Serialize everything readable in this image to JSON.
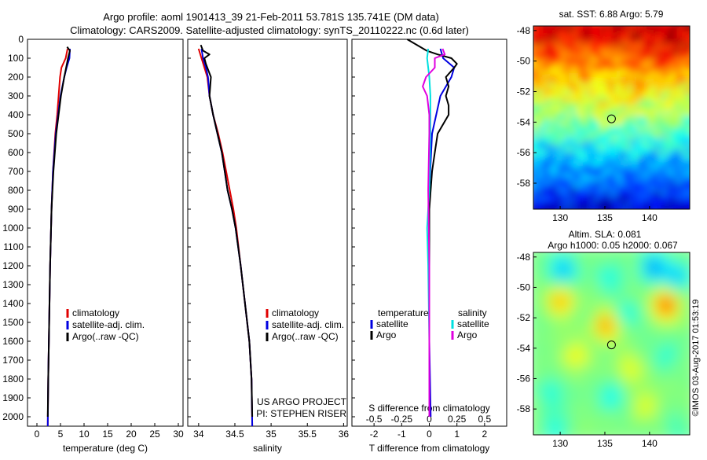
{
  "title_line1": "Argo profile: aoml 1901413_39 21-Feb-2011 53.781S 135.741E (DM data)",
  "title_line2": "Climatology: CARS2009. Satellite-adjusted climatology: synTS_20110222.nc (0.6d later)",
  "side_stamp": "©IMOS 03-Aug-2017 01:53:19",
  "colors": {
    "climatology": "#e00000",
    "satellite": "#0000e0",
    "argo": "#000000",
    "sal_satellite": "#00e0e0",
    "sal_argo": "#e000e0"
  },
  "chart_data": [
    {
      "type": "line",
      "xlabel": "temperature (deg C)",
      "ylabel": "",
      "xlim": [
        -2,
        31
      ],
      "ylim": [
        2050,
        0
      ],
      "xticks": [
        0,
        5,
        10,
        15,
        20,
        25,
        30
      ],
      "xtick_labels": [
        "0",
        "5",
        "10",
        "15",
        "20",
        "25",
        "30"
      ],
      "yticks": [
        0,
        100,
        200,
        300,
        400,
        500,
        600,
        700,
        800,
        900,
        1000,
        1100,
        1200,
        1300,
        1400,
        1500,
        1600,
        1700,
        1800,
        1900,
        2000
      ],
      "ytick_labels": [
        "0",
        "100",
        "200",
        "300",
        "400",
        "500",
        "600",
        "700",
        "800",
        "900",
        "1000",
        "1100",
        "1200",
        "1300",
        "1400",
        "1500",
        "1600",
        "1700",
        "1800",
        "1900",
        "2000"
      ],
      "legend": [
        "climatology",
        "satellite-adj. clim.",
        "Argo(..raw -QC)"
      ],
      "legend_position": "lower-right",
      "series": [
        {
          "name": "climatology",
          "color_key": "climatology",
          "depth": [
            50,
            100,
            150,
            200,
            300,
            400,
            500,
            700,
            900,
            1200,
            1500,
            1800,
            2050
          ],
          "values": [
            6.5,
            6.1,
            5.2,
            4.9,
            4.6,
            4.3,
            3.9,
            3.4,
            3.1,
            2.8,
            2.6,
            2.4,
            2.3
          ]
        },
        {
          "name": "satellite-adj. clim.",
          "color_key": "satellite",
          "depth": [
            50,
            100,
            150,
            200,
            300,
            400,
            500,
            700,
            900,
            1200,
            1500,
            1800,
            2050
          ],
          "values": [
            7.0,
            6.9,
            6.3,
            5.8,
            5.0,
            4.5,
            4.0,
            3.4,
            3.1,
            2.8,
            2.6,
            2.4,
            2.3
          ]
        },
        {
          "name": "Argo(..raw -QC)",
          "color_key": "argo",
          "depth": [
            40,
            60,
            80,
            100,
            150,
            200,
            300,
            400,
            500,
            700,
            900,
            1200,
            1500,
            1800,
            2000
          ],
          "values": [
            6.4,
            7.0,
            6.8,
            6.6,
            6.2,
            5.8,
            5.1,
            4.6,
            4.1,
            3.5,
            3.1,
            2.8,
            2.6,
            2.4,
            2.3
          ]
        }
      ]
    },
    {
      "type": "line",
      "xlabel": "salinity",
      "ylabel": "",
      "xlim": [
        33.85,
        36.05
      ],
      "ylim": [
        2050,
        0
      ],
      "xticks": [
        34,
        34.5,
        35,
        35.5,
        36
      ],
      "xtick_labels": [
        "34",
        "34.5",
        "35",
        "35.5",
        "36"
      ],
      "legend": [
        "climatology",
        "satellite-adj. clim.",
        "Argo(..raw -QC)"
      ],
      "legend_position": "lower-right",
      "annotations": [
        "US ARGO PROJECT",
        "PI: STEPHEN RISER"
      ],
      "series": [
        {
          "name": "climatology",
          "color_key": "climatology",
          "depth": [
            50,
            100,
            150,
            200,
            300,
            400,
            500,
            600,
            700,
            800,
            900,
            1000,
            1200,
            1400,
            1600,
            1800,
            2050
          ],
          "values": [
            34.0,
            34.04,
            34.08,
            34.12,
            34.15,
            34.2,
            34.27,
            34.33,
            34.38,
            34.43,
            34.48,
            34.52,
            34.58,
            34.64,
            34.7,
            34.73,
            34.74
          ]
        },
        {
          "name": "satellite-adj. clim.",
          "color_key": "satellite",
          "depth": [
            50,
            100,
            150,
            200,
            300,
            400,
            500,
            600,
            700,
            800,
            900,
            1000,
            1200,
            1400,
            1600,
            1800,
            2050
          ],
          "values": [
            34.04,
            34.06,
            34.1,
            34.13,
            34.15,
            34.2,
            34.26,
            34.32,
            34.36,
            34.4,
            34.46,
            34.51,
            34.58,
            34.64,
            34.7,
            34.73,
            34.74
          ]
        },
        {
          "name": "Argo(..raw -QC)",
          "color_key": "argo",
          "depth": [
            30,
            60,
            80,
            100,
            130,
            160,
            200,
            250,
            300,
            400,
            500,
            600,
            700,
            800,
            900,
            1000,
            1200,
            1400,
            1600,
            1800,
            2000
          ],
          "values": [
            34.03,
            34.06,
            34.15,
            34.08,
            34.1,
            34.13,
            34.17,
            34.16,
            34.15,
            34.2,
            34.26,
            34.32,
            34.36,
            34.4,
            34.46,
            34.51,
            34.58,
            34.64,
            34.7,
            34.73,
            34.74
          ]
        }
      ]
    },
    {
      "type": "line",
      "xlabel": "T difference from climatology",
      "xlabel_top": "S difference from climatology",
      "xlim": [
        -2.8,
        2.8
      ],
      "ylim": [
        2050,
        0
      ],
      "xticks": [
        -2,
        -1,
        0,
        1,
        2
      ],
      "xtick_labels": [
        "-2",
        "-1",
        "0",
        "1",
        "2"
      ],
      "sal_xticks": [
        -0.5,
        -0.25,
        0,
        0.25,
        0.5
      ],
      "sal_xtick_labels": [
        "-0.5",
        "-0.25",
        "0",
        "0.25",
        "0.5"
      ],
      "legend_headers": [
        "temperature",
        "salinity"
      ],
      "legend": [
        "satellite",
        "Argo",
        "satellite",
        "Argo"
      ],
      "legend_position": "lower-center",
      "series": [
        {
          "name": "temperature satellite",
          "color_key": "satellite",
          "depth": [
            50,
            100,
            150,
            200,
            300,
            500,
            800,
            1200,
            1600,
            2000
          ],
          "values": [
            0.4,
            0.5,
            0.9,
            0.8,
            0.4,
            0.1,
            0.0,
            0.0,
            0.0,
            0.05
          ]
        },
        {
          "name": "temperature Argo",
          "color_key": "argo",
          "depth": [
            0,
            60,
            80,
            100,
            130,
            150,
            200,
            250,
            300,
            350,
            400,
            450,
            500,
            600,
            700,
            900,
            1200,
            1600,
            2000
          ],
          "values": [
            -0.8,
            -0.1,
            0.3,
            0.8,
            1.0,
            0.9,
            0.6,
            0.7,
            0.6,
            0.7,
            0.7,
            0.5,
            0.3,
            0.2,
            0.1,
            0.0,
            0.0,
            0.0,
            0.0
          ]
        },
        {
          "name": "salinity satellite",
          "color_key": "sal_satellite",
          "depth": [
            50,
            100,
            200,
            300,
            500,
            800,
            1000,
            1200,
            1600,
            2000
          ],
          "values": [
            -0.01,
            -0.02,
            0.0,
            0.01,
            0.01,
            0.0,
            -0.02,
            -0.01,
            0.0,
            0.0
          ]
        },
        {
          "name": "salinity Argo",
          "color_key": "sal_argo",
          "depth": [
            50,
            80,
            100,
            150,
            200,
            250,
            300,
            400,
            500,
            800,
            1200,
            1600,
            2000
          ],
          "values": [
            0.12,
            0.14,
            0.05,
            0.05,
            -0.03,
            -0.06,
            -0.02,
            0.0,
            0.0,
            -0.01,
            0.0,
            0.0,
            0.0
          ]
        }
      ]
    },
    {
      "type": "heatmap",
      "title": "sat. SST: 6.88 Argo: 5.79",
      "xlim": [
        127,
        144.5
      ],
      "ylim": [
        -59.7,
        -47.7
      ],
      "xticks": [
        130,
        135,
        140
      ],
      "xtick_labels": [
        "130",
        "135",
        "140"
      ],
      "yticks": [
        -48,
        -50,
        -52,
        -54,
        -56,
        -58
      ],
      "ytick_labels": [
        "-48",
        "-50",
        "-52",
        "-54",
        "-56",
        "-58"
      ],
      "marker": {
        "lon": 135.741,
        "lat": -53.781
      }
    },
    {
      "type": "heatmap",
      "title": "Altim. SLA: 0.081",
      "subtitle": "Argo h1000: 0.05 h2000: 0.067",
      "xlim": [
        127,
        144.5
      ],
      "ylim": [
        -59.7,
        -47.7
      ],
      "xticks": [
        130,
        135,
        140
      ],
      "xtick_labels": [
        "130",
        "135",
        "140"
      ],
      "yticks": [
        -48,
        -50,
        -52,
        -54,
        -56,
        -58
      ],
      "ytick_labels": [
        "-48",
        "-50",
        "-52",
        "-54",
        "-56",
        "-58"
      ],
      "marker": {
        "lon": 135.741,
        "lat": -53.781
      }
    }
  ]
}
